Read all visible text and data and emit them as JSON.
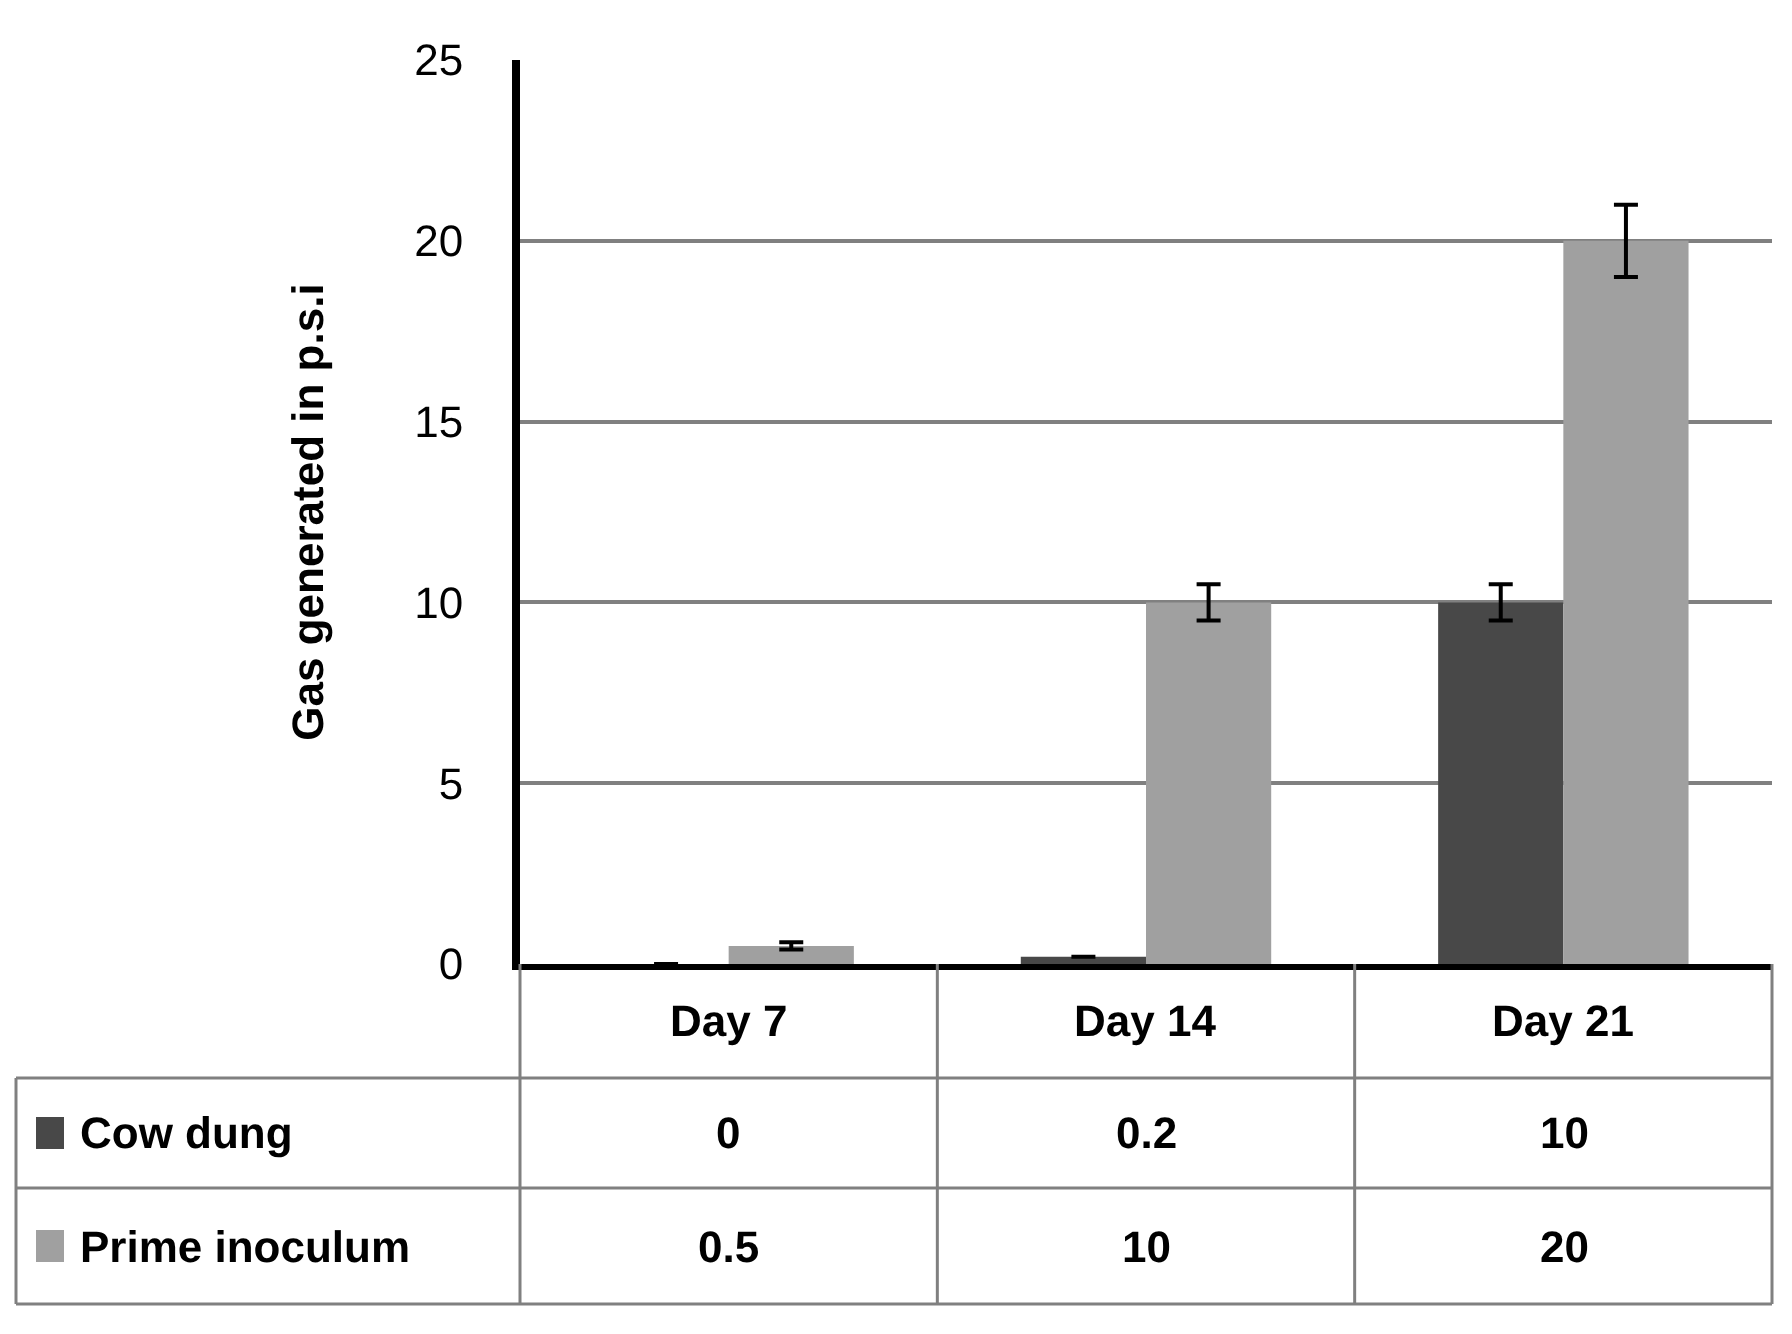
{
  "chart_data": {
    "type": "bar",
    "ylabel": "Gas generated in p.s.i",
    "categories": [
      "Day 7",
      "Day 14",
      "Day 21"
    ],
    "series": [
      {
        "name": "Cow dung",
        "color": "#484848",
        "values": [
          0,
          0.2,
          10
        ],
        "errors": [
          null,
          null,
          0.5
        ]
      },
      {
        "name": "Prime inoculum",
        "color": "#a0a0a0",
        "values": [
          0.5,
          10,
          20
        ],
        "errors": [
          0.1,
          0.5,
          1
        ]
      }
    ],
    "ylim": [
      0,
      25
    ],
    "yticks": [
      0,
      5,
      10,
      15,
      20,
      25
    ],
    "grid": "y",
    "data_labels": true,
    "legend": "bottom"
  }
}
